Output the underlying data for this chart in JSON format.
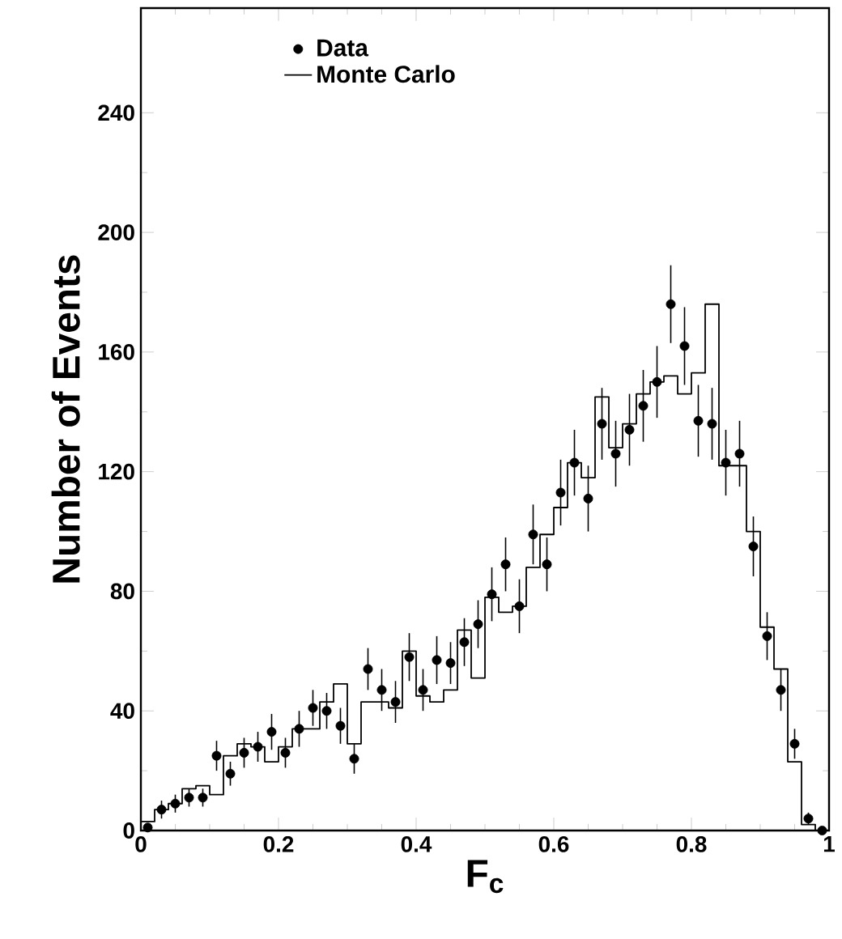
{
  "chart_data": {
    "type": "scatter",
    "xlabel": "F$_{c}$",
    "ylabel": "Number of Events",
    "xlim": [
      0,
      1
    ],
    "ylim": [
      0,
      275
    ],
    "xticks": [
      0,
      0.2,
      0.4,
      0.6,
      0.8,
      1
    ],
    "yticks": [
      0,
      40,
      80,
      120,
      160,
      200,
      240
    ],
    "legend": "top left",
    "grid": false,
    "marker": "circle",
    "series": [
      {
        "name": "Data",
        "color": "#000000",
        "x": [
          0.01,
          0.03,
          0.05,
          0.07,
          0.09,
          0.11,
          0.13,
          0.15,
          0.17,
          0.19,
          0.21,
          0.23,
          0.25,
          0.27,
          0.29,
          0.31,
          0.33,
          0.35,
          0.37,
          0.39,
          0.41,
          0.43,
          0.45,
          0.47,
          0.49,
          0.51,
          0.53,
          0.55,
          0.57,
          0.59,
          0.61,
          0.63,
          0.65,
          0.67,
          0.69,
          0.71,
          0.73,
          0.75,
          0.77,
          0.79,
          0.81,
          0.83,
          0.85,
          0.87,
          0.89,
          0.91,
          0.93,
          0.95,
          0.97,
          0.99
        ],
        "values": [
          1,
          7,
          9,
          11,
          11,
          25,
          19,
          26,
          28,
          33,
          26,
          34,
          41,
          40,
          35,
          24,
          54,
          47,
          43,
          58,
          47,
          57,
          56,
          63,
          69,
          79,
          89,
          75,
          99,
          89,
          113,
          123,
          111,
          136,
          126,
          134,
          142,
          150,
          176,
          162,
          137,
          136,
          123,
          126,
          95,
          65,
          47,
          29,
          4,
          0
        ],
        "errors": [
          1,
          3,
          3,
          3,
          3,
          5,
          4,
          5,
          5,
          6,
          5,
          6,
          6,
          6,
          6,
          5,
          7,
          7,
          7,
          8,
          7,
          8,
          7,
          8,
          8,
          9,
          9,
          9,
          10,
          9,
          11,
          11,
          11,
          12,
          11,
          12,
          12,
          12,
          13,
          13,
          12,
          12,
          11,
          11,
          10,
          8,
          7,
          5,
          2,
          null
        ]
      },
      {
        "name": "Monte Carlo",
        "type": "histogram",
        "color": "#000000",
        "line_style": "solid",
        "bins": [
          0,
          0.02,
          0.04,
          0.06,
          0.08,
          0.1,
          0.12,
          0.14,
          0.16,
          0.18,
          0.2,
          0.22,
          0.24,
          0.26,
          0.28,
          0.3,
          0.32,
          0.34,
          0.36,
          0.38,
          0.4,
          0.42,
          0.44,
          0.46,
          0.48,
          0.5,
          0.52,
          0.54,
          0.56,
          0.58,
          0.6,
          0.62,
          0.64,
          0.66,
          0.68,
          0.7,
          0.72,
          0.74,
          0.76,
          0.78,
          0.8,
          0.82,
          0.84,
          0.86,
          0.88,
          0.9,
          0.92,
          0.94,
          0.96,
          0.98,
          1
        ],
        "values": [
          3,
          7,
          9,
          14,
          15,
          12,
          25,
          29,
          28,
          23,
          28,
          34,
          34,
          43,
          49,
          29,
          43,
          43,
          41,
          60,
          45,
          43,
          47,
          67,
          51,
          78,
          73,
          75,
          88,
          99,
          108,
          123,
          118,
          145,
          128,
          136,
          146,
          150,
          152,
          146,
          153,
          176,
          122,
          122,
          100,
          68,
          54,
          23,
          2,
          0
        ]
      }
    ]
  }
}
